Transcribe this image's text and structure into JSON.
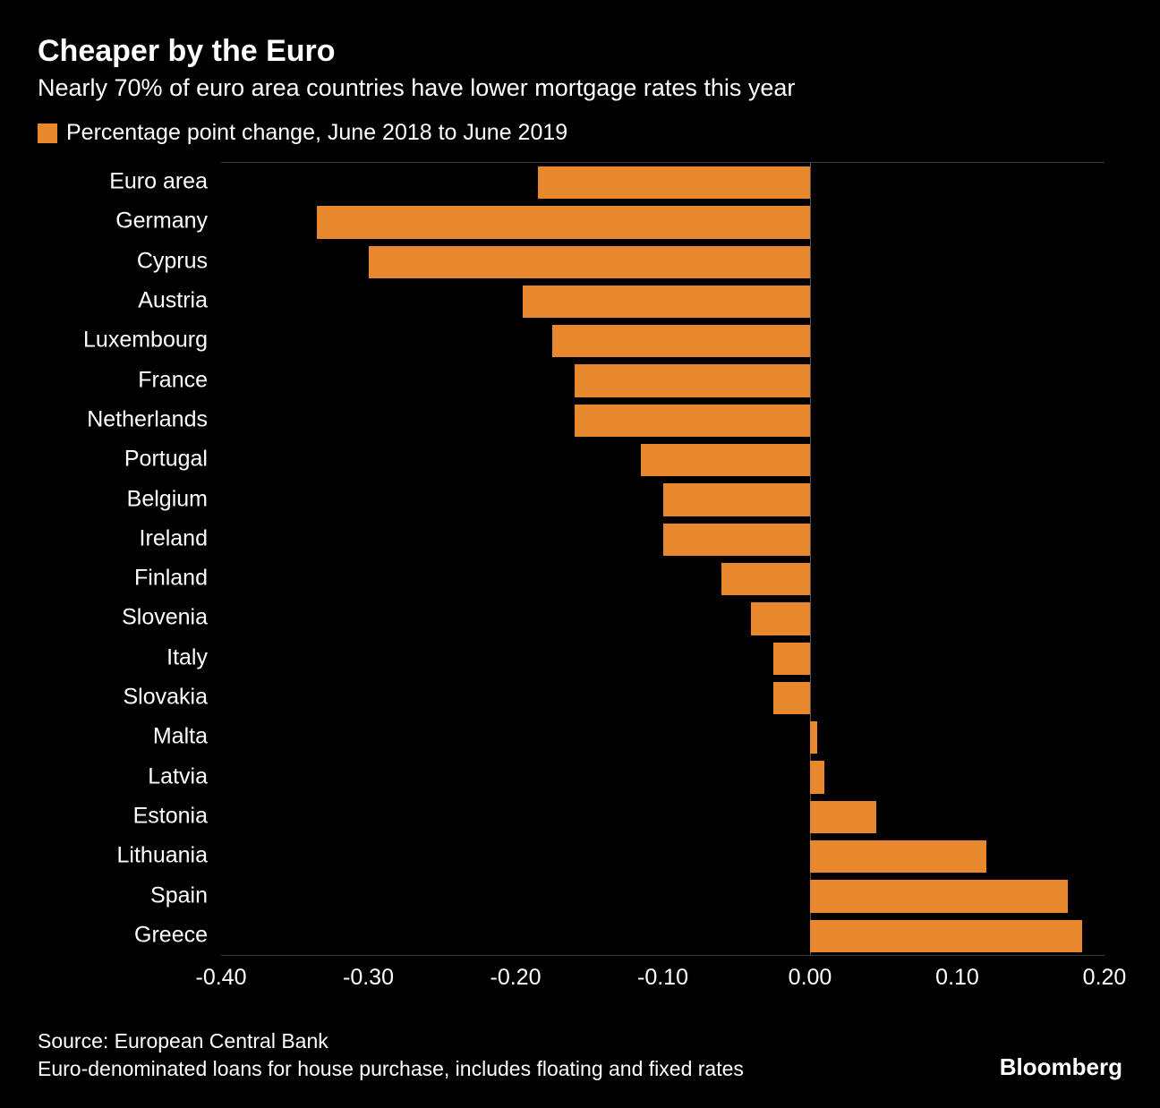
{
  "title": "Cheaper by the Euro",
  "subtitle": "Nearly 70% of euro area countries have lower mortgage rates this year",
  "legend_label": "Percentage point change, June 2018 to June 2019",
  "source_line1": "Source: European Central Bank",
  "source_line2": "Euro-denominated loans for house purchase, includes floating and fixed rates",
  "brand": "Bloomberg",
  "chart": {
    "type": "bar-horizontal",
    "bar_color": "#e8882e",
    "background_color": "#000000",
    "text_color": "#ffffff",
    "grid_color": "#3a3a3a",
    "zero_line_color": "#555555",
    "xlim": [
      -0.4,
      0.2
    ],
    "x_ticks": [
      -0.4,
      -0.3,
      -0.2,
      -0.1,
      0.0,
      0.1,
      0.2
    ],
    "x_tick_labels": [
      "-0.40",
      "-0.30",
      "-0.20",
      "-0.10",
      "0.00",
      "0.10",
      "0.20"
    ],
    "bar_height_ratio": 0.82,
    "categories": [
      "Euro area",
      "Germany",
      "Cyprus",
      "Austria",
      "Luxembourg",
      "France",
      "Netherlands",
      "Portugal",
      "Belgium",
      "Ireland",
      "Finland",
      "Slovenia",
      "Italy",
      "Slovakia",
      "Malta",
      "Latvia",
      "Estonia",
      "Lithuania",
      "Spain",
      "Greece"
    ],
    "values": [
      -0.185,
      -0.335,
      -0.3,
      -0.195,
      -0.175,
      -0.16,
      -0.16,
      -0.115,
      -0.1,
      -0.1,
      -0.06,
      -0.04,
      -0.025,
      -0.025,
      0.005,
      0.01,
      0.045,
      0.12,
      0.175,
      0.185
    ],
    "title_fontsize": 34,
    "subtitle_fontsize": 27,
    "axis_label_fontsize": 25,
    "footer_fontsize": 23
  }
}
